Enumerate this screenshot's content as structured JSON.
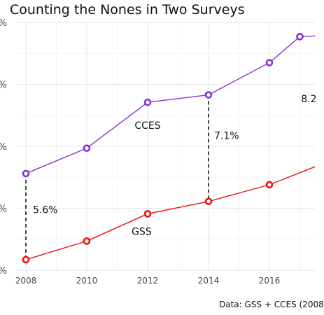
{
  "chart_data": {
    "type": "line",
    "title": "Counting the Nones in Two Surveys",
    "caption": "Data: GSS + CCES (2008",
    "xlabel": "",
    "ylabel": "",
    "x_ticks": [
      "2008",
      "2010",
      "2012",
      "2014",
      "2016"
    ],
    "y_tick_labels": [
      "%",
      "%",
      "%",
      "%",
      "%"
    ],
    "xlim": [
      2007.5,
      2017.5
    ],
    "ylim_index": [
      0,
      4
    ],
    "grid": true,
    "legend": "none",
    "series": [
      {
        "name": "CCES",
        "color": "#8a33cc",
        "x": [
          2008,
          2010,
          2012,
          2014,
          2016,
          2017,
          2017.5
        ],
        "y": [
          1.56,
          1.97,
          2.71,
          2.83,
          3.35,
          3.77,
          3.78
        ]
      },
      {
        "name": "GSS",
        "color": "#ee1111",
        "x": [
          2008,
          2010,
          2012,
          2014,
          2016,
          2017.5
        ],
        "y": [
          0.17,
          0.47,
          0.91,
          1.11,
          1.38,
          1.67
        ]
      }
    ],
    "gaps": [
      {
        "x": 2008,
        "label": "5.6%"
      },
      {
        "x": 2014,
        "label": "7.1%"
      },
      {
        "x": 2017.5,
        "label": "8.2"
      }
    ]
  }
}
